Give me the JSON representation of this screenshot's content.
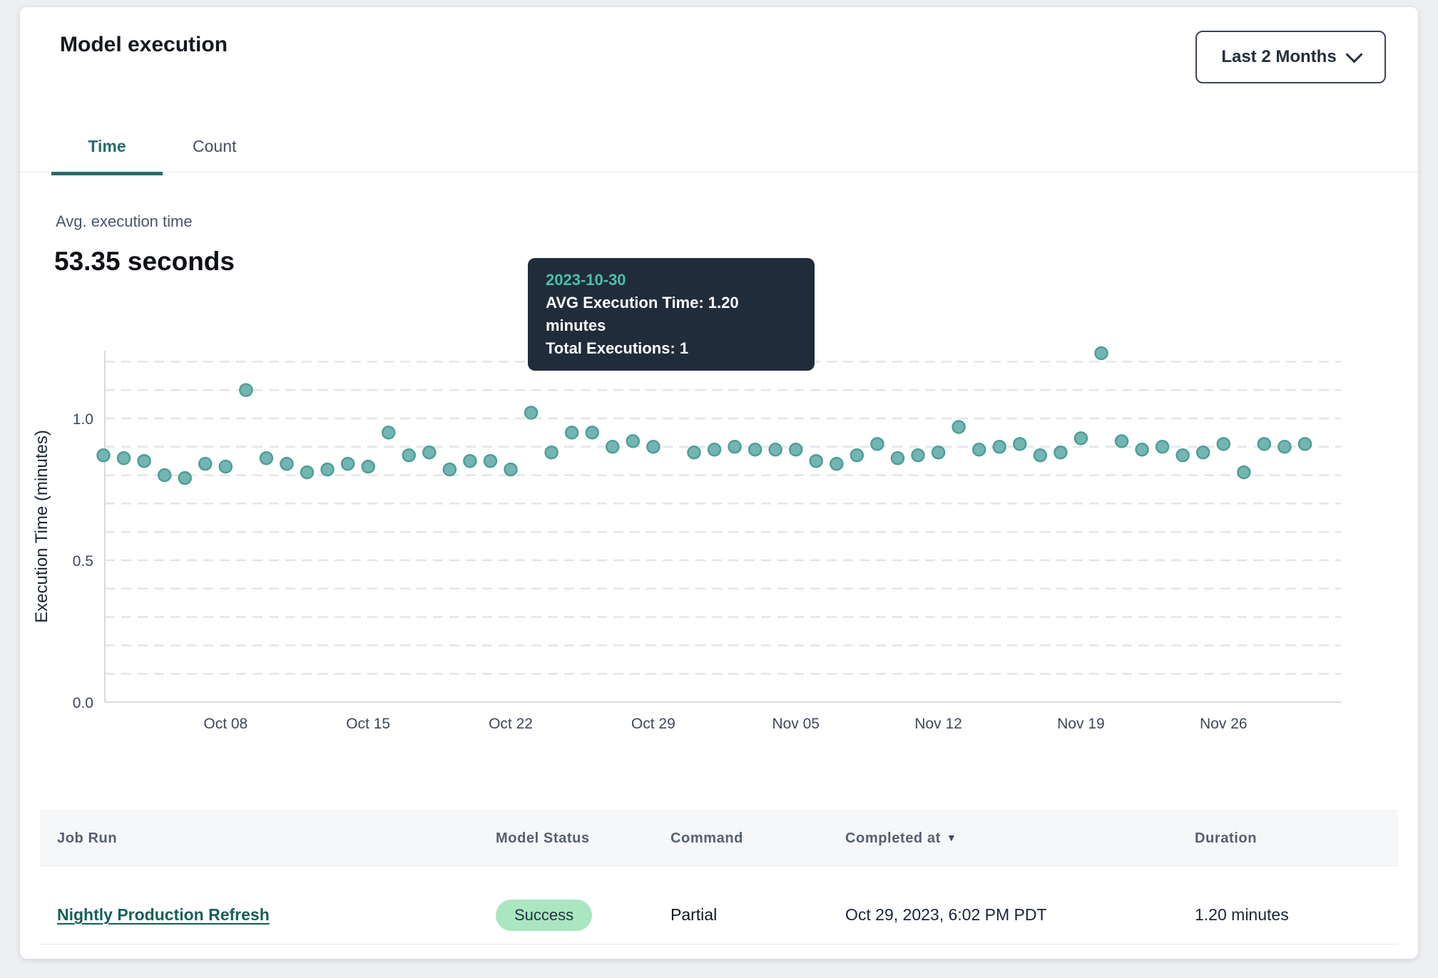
{
  "header": {
    "title": "Model execution",
    "period_selector": "Last 2 Months"
  },
  "tabs": {
    "items": [
      {
        "label": "Time",
        "active": true
      },
      {
        "label": "Count",
        "active": false
      }
    ]
  },
  "summary": {
    "label": "Avg. execution time",
    "value": "53.35 seconds"
  },
  "tooltip": {
    "date": "2023-10-30",
    "avg_line": "AVG Execution Time: 1.20 minutes",
    "total_line": "Total Executions: 1"
  },
  "icons": {
    "sort_desc": "▼",
    "chevron_down": "chevron-down"
  },
  "colors": {
    "accent_teal": "#2b6b6b",
    "point_fill": "#73b6b1",
    "point_stroke": "#4f9e98",
    "highlight_fill": "#47868a",
    "grid_line": "#e3e5e9",
    "axis_line": "#d7dade",
    "tooltip_bg": "#212c3b",
    "tooltip_date": "#49c0ab",
    "badge_bg": "#a9e6c1",
    "link": "#175f59"
  },
  "chart_data": {
    "type": "scatter",
    "title": "",
    "xlabel": "",
    "ylabel": "Execution Time (minutes)",
    "ylim": [
      0,
      1.25
    ],
    "yticks": [
      "0.0",
      "0.5",
      "1.0"
    ],
    "ytick_values": [
      0,
      0.5,
      1.0
    ],
    "grid": "horizontal dashed every 0.1",
    "legend": "none",
    "x_tick_labels": [
      {
        "label": "Oct 08",
        "date": "2023-10-08"
      },
      {
        "label": "Oct 15",
        "date": "2023-10-15"
      },
      {
        "label": "Oct 22",
        "date": "2023-10-22"
      },
      {
        "label": "Oct 29",
        "date": "2023-10-29"
      },
      {
        "label": "Nov 05",
        "date": "2023-11-05"
      },
      {
        "label": "Nov 12",
        "date": "2023-11-12"
      },
      {
        "label": "Nov 19",
        "date": "2023-11-19"
      },
      {
        "label": "Nov 26",
        "date": "2023-11-26"
      }
    ],
    "highlight": {
      "date": "2023-10-30",
      "value": 1.2
    },
    "series": [
      {
        "name": "AVG Execution Time (minutes)",
        "points": [
          {
            "date": "2023-10-02",
            "value": 0.87
          },
          {
            "date": "2023-10-03",
            "value": 0.86
          },
          {
            "date": "2023-10-04",
            "value": 0.85
          },
          {
            "date": "2023-10-05",
            "value": 0.8
          },
          {
            "date": "2023-10-06",
            "value": 0.79
          },
          {
            "date": "2023-10-07",
            "value": 0.84
          },
          {
            "date": "2023-10-08",
            "value": 0.83
          },
          {
            "date": "2023-10-09",
            "value": 1.1
          },
          {
            "date": "2023-10-10",
            "value": 0.86
          },
          {
            "date": "2023-10-11",
            "value": 0.84
          },
          {
            "date": "2023-10-12",
            "value": 0.81
          },
          {
            "date": "2023-10-13",
            "value": 0.82
          },
          {
            "date": "2023-10-14",
            "value": 0.84
          },
          {
            "date": "2023-10-15",
            "value": 0.83
          },
          {
            "date": "2023-10-16",
            "value": 0.95
          },
          {
            "date": "2023-10-17",
            "value": 0.87
          },
          {
            "date": "2023-10-18",
            "value": 0.88
          },
          {
            "date": "2023-10-19",
            "value": 0.82
          },
          {
            "date": "2023-10-20",
            "value": 0.85
          },
          {
            "date": "2023-10-21",
            "value": 0.85
          },
          {
            "date": "2023-10-22",
            "value": 0.82
          },
          {
            "date": "2023-10-23",
            "value": 1.02
          },
          {
            "date": "2023-10-24",
            "value": 0.88
          },
          {
            "date": "2023-10-25",
            "value": 0.95
          },
          {
            "date": "2023-10-26",
            "value": 0.95
          },
          {
            "date": "2023-10-27",
            "value": 0.9
          },
          {
            "date": "2023-10-28",
            "value": 0.92
          },
          {
            "date": "2023-10-29",
            "value": 0.9
          },
          {
            "date": "2023-10-30",
            "value": 1.2
          },
          {
            "date": "2023-10-31",
            "value": 0.88
          },
          {
            "date": "2023-11-01",
            "value": 0.89
          },
          {
            "date": "2023-11-02",
            "value": 0.9
          },
          {
            "date": "2023-11-03",
            "value": 0.89
          },
          {
            "date": "2023-11-04",
            "value": 0.89
          },
          {
            "date": "2023-11-05",
            "value": 0.89
          },
          {
            "date": "2023-11-06",
            "value": 0.85
          },
          {
            "date": "2023-11-07",
            "value": 0.84
          },
          {
            "date": "2023-11-08",
            "value": 0.87
          },
          {
            "date": "2023-11-09",
            "value": 0.91
          },
          {
            "date": "2023-11-10",
            "value": 0.86
          },
          {
            "date": "2023-11-11",
            "value": 0.87
          },
          {
            "date": "2023-11-12",
            "value": 0.88
          },
          {
            "date": "2023-11-13",
            "value": 0.97
          },
          {
            "date": "2023-11-14",
            "value": 0.89
          },
          {
            "date": "2023-11-15",
            "value": 0.9
          },
          {
            "date": "2023-11-16",
            "value": 0.91
          },
          {
            "date": "2023-11-17",
            "value": 0.87
          },
          {
            "date": "2023-11-18",
            "value": 0.88
          },
          {
            "date": "2023-11-19",
            "value": 0.93
          },
          {
            "date": "2023-11-20",
            "value": 1.23
          },
          {
            "date": "2023-11-21",
            "value": 0.92
          },
          {
            "date": "2023-11-22",
            "value": 0.89
          },
          {
            "date": "2023-11-23",
            "value": 0.9
          },
          {
            "date": "2023-11-24",
            "value": 0.87
          },
          {
            "date": "2023-11-25",
            "value": 0.88
          },
          {
            "date": "2023-11-26",
            "value": 0.91
          },
          {
            "date": "2023-11-27",
            "value": 0.81
          },
          {
            "date": "2023-11-28",
            "value": 0.91
          },
          {
            "date": "2023-11-29",
            "value": 0.9
          },
          {
            "date": "2023-11-30",
            "value": 0.91
          }
        ]
      }
    ]
  },
  "table": {
    "columns": [
      {
        "label": "Job Run"
      },
      {
        "label": "Model Status"
      },
      {
        "label": "Command"
      },
      {
        "label": "Completed at",
        "sort": "desc"
      },
      {
        "label": "Duration"
      }
    ],
    "rows": [
      {
        "job_run": "Nightly Production Refresh",
        "model_status": "Success",
        "command": "Partial",
        "completed_at": "Oct 29, 2023, 6:02 PM PDT",
        "duration": "1.20 minutes"
      }
    ]
  }
}
